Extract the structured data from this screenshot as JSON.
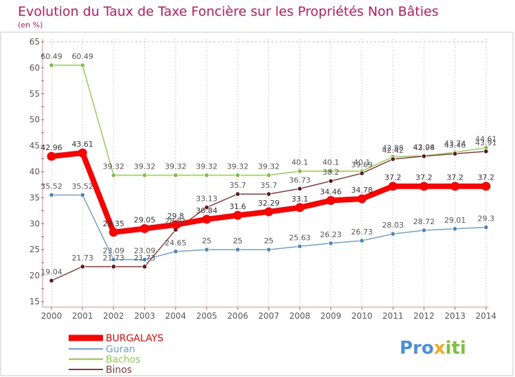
{
  "title": "Evolution du Taux de Taxe Foncière sur les Propriétés Non Bâties",
  "subtitle": "(en %)",
  "logo_text": "Proxiti",
  "chart_data": {
    "type": "line",
    "title": "Evolution du Taux de Taxe Foncière sur les Propriétés Non Bâties",
    "ylabel": "(en %)",
    "xlabel": "",
    "ylim": [
      15,
      65
    ],
    "yticks": [
      15,
      20,
      25,
      30,
      35,
      40,
      45,
      50,
      55,
      60,
      65
    ],
    "grid": "vertical dotted",
    "legend_position": "bottom-left",
    "categories": [
      "2000",
      "2001",
      "2002",
      "2003",
      "2004",
      "2005",
      "2006",
      "2007",
      "2008",
      "2009",
      "2010",
      "2011",
      "2012",
      "2013",
      "2014"
    ],
    "series": [
      {
        "name": "BURGALAYS",
        "color": "#ff0000",
        "marker": "#ff0000",
        "bold": true,
        "values": [
          42.96,
          43.61,
          28.35,
          29.05,
          29.8,
          30.84,
          31.6,
          32.29,
          33.1,
          34.46,
          34.78,
          37.2,
          37.2,
          37.2,
          37.2
        ],
        "labels": [
          "42.96",
          "43.61",
          "28.35",
          "29.05",
          "29.8",
          "30.84",
          "31.6",
          "32.29",
          "33.1",
          "34.46",
          "34.78",
          "37.2",
          "37.2",
          "37.2",
          "37.2"
        ]
      },
      {
        "name": "Guran",
        "color": "#6fa0cf",
        "marker": "#4a86c0",
        "bold": false,
        "values": [
          35.52,
          35.52,
          23.09,
          23.09,
          24.65,
          25,
          25,
          25,
          25.63,
          26.23,
          26.73,
          28.03,
          28.72,
          29.01,
          29.3
        ],
        "labels": [
          "35.52",
          "35.52",
          "23.09",
          "23.09",
          "24.65",
          "25",
          "25",
          "25",
          "25.63",
          "26.23",
          "26.73",
          "28.03",
          "28.72",
          "29.01",
          "29.3"
        ]
      },
      {
        "name": "Bachos",
        "color": "#8fd14f",
        "marker": "#7cc040",
        "bold": false,
        "values": [
          60.49,
          60.49,
          39.32,
          39.32,
          39.32,
          39.32,
          39.32,
          39.32,
          40.1,
          40.1,
          40.1,
          42.88,
          43.04,
          43.74,
          44.61
        ],
        "labels": [
          "60.49",
          "60.49",
          "39.32",
          "39.32",
          "39.32",
          "39.32",
          "39.32",
          "39.32",
          "40.1",
          "40.1",
          "40.1",
          "42.88",
          "43.04",
          "43.74",
          "44.61"
        ]
      },
      {
        "name": "Binos",
        "color": "#8b3a3a",
        "marker": "#5a1a1a",
        "bold": false,
        "values": [
          19.04,
          21.73,
          21.73,
          21.73,
          28.81,
          33.13,
          35.7,
          35.7,
          36.73,
          38.2,
          39.69,
          42.42,
          42.98,
          43.46,
          43.91
        ],
        "labels": [
          "19.04",
          "21.73",
          "21.73",
          "21.73",
          "28.81",
          "33.13",
          "35.7",
          "35.7",
          "36.73",
          "38.2",
          "39.69",
          "42.42",
          "42.98",
          "43.46",
          "43.91"
        ]
      }
    ]
  }
}
